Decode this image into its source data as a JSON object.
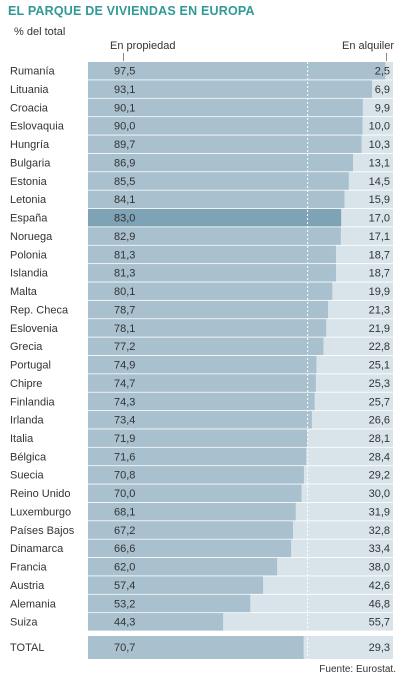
{
  "title": "EL PARQUE DE VIVIENDAS EN EUROPA",
  "unit_label": "% del total",
  "source": "Fuente: Eurostat.",
  "colors": {
    "title": "#2f9a97",
    "own_bar": "#a9c1ce",
    "own_highlight": "#7ea3b6",
    "rent_bar": "#d9e4ea",
    "row_separator": "#ffffff",
    "divider": "#ffffff"
  },
  "chart_data": {
    "type": "bar",
    "orientation": "horizontal",
    "stacked": true,
    "xlim": [
      0,
      100
    ],
    "highlight": "España",
    "series": [
      {
        "name": "En propiedad",
        "values": [
          97.5,
          93.1,
          90.1,
          90.0,
          89.7,
          86.9,
          85.5,
          84.1,
          83.0,
          82.9,
          81.3,
          81.3,
          80.1,
          78.7,
          78.1,
          77.2,
          74.9,
          74.7,
          74.3,
          73.4,
          71.9,
          71.6,
          70.8,
          70.0,
          68.1,
          67.2,
          66.6,
          62.0,
          57.4,
          53.2,
          44.3
        ],
        "labels": [
          "97,5",
          "93,1",
          "90,1",
          "90,0",
          "89,7",
          "86,9",
          "85,5",
          "84,1",
          "83,0",
          "82,9",
          "81,3",
          "81,3",
          "80,1",
          "78,7",
          "78,1",
          "77,2",
          "74,9",
          "74,7",
          "74,3",
          "73,4",
          "71,9",
          "71,6",
          "70,8",
          "70,0",
          "68,1",
          "67,2",
          "66,6",
          "62,0",
          "57,4",
          "53,2",
          "44,3"
        ]
      },
      {
        "name": "En alquiler",
        "values": [
          2.5,
          6.9,
          9.9,
          10.0,
          10.3,
          13.1,
          14.5,
          15.9,
          17.0,
          17.1,
          18.7,
          18.7,
          19.9,
          21.3,
          21.9,
          22.8,
          25.1,
          25.3,
          25.7,
          26.6,
          28.1,
          28.4,
          29.2,
          30.0,
          31.9,
          32.8,
          33.4,
          38.0,
          42.6,
          46.8,
          55.7
        ],
        "labels": [
          "2,5",
          "6,9",
          "9,9",
          "10,0",
          "10,3",
          "13,1",
          "14,5",
          "15,9",
          "17,0",
          "17,1",
          "18,7",
          "18,7",
          "19,9",
          "21,3",
          "21,9",
          "22,8",
          "25,1",
          "25,3",
          "25,7",
          "26,6",
          "28,1",
          "28,4",
          "29,2",
          "30,0",
          "31,9",
          "32,8",
          "33,4",
          "38,0",
          "42,6",
          "46,8",
          "55,7"
        ]
      }
    ],
    "categories": [
      "Rumanía",
      "Lituania",
      "Croacia",
      "Eslovaquia",
      "Hungría",
      "Bulgaria",
      "Estonia",
      "Letonia",
      "España",
      "Noruega",
      "Polonia",
      "Islandia",
      "Malta",
      "Rep. Checa",
      "Eslovenia",
      "Grecia",
      "Portugal",
      "Chipre",
      "Finlandia",
      "Irlanda",
      "Italia",
      "Bélgica",
      "Suecia",
      "Reino Unido",
      "Luxemburgo",
      "Países Bajos",
      "Dinamarca",
      "Francia",
      "Austria",
      "Alemania",
      "Suiza"
    ],
    "total": {
      "label": "TOTAL",
      "own": 70.7,
      "own_label": "70,7",
      "rent": 29.3,
      "rent_label": "29,3"
    }
  }
}
